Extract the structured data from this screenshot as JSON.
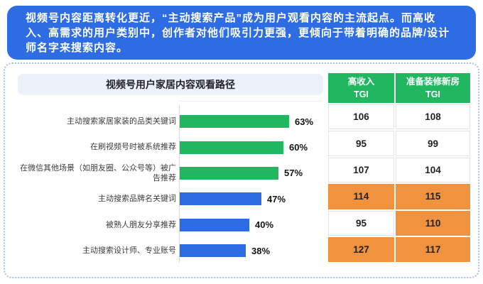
{
  "header": {
    "text": "视频号内容距离转化更近，“主动搜索产品”成为用户观看内容的主流起点。而高收入、高需求的用户类别中，创作者对他们吸引力更强，更倾向于带着明确的品牌/设计师名字来搜索内容。"
  },
  "chart_data": {
    "type": "bar",
    "orientation": "horizontal",
    "title": "视频号用户家居内容观看路径",
    "categories": [
      "主动搜索家居家装的品类关键词",
      "在刷视频号时被系统推荐",
      "在微信其他场景（如朋友圈、公众号等）被广告推荐",
      "主动搜索品牌名关键词",
      "被熟人朋友分享推荐",
      "主动搜索设计师、专业账号"
    ],
    "values": [
      63,
      60,
      57,
      47,
      40,
      38
    ],
    "value_labels": [
      "63%",
      "60%",
      "57%",
      "47%",
      "40%",
      "38%"
    ],
    "series_colors": [
      "#21b760",
      "#21b760",
      "#21b760",
      "#2d6ce2",
      "#2d6ce2",
      "#2d6ce2"
    ],
    "xlim": [
      0,
      70
    ],
    "grid": false,
    "legend": "none"
  },
  "table": {
    "columns": [
      {
        "line1": "高收入",
        "line2": "TGI"
      },
      {
        "line1": "准备装修新房",
        "line2": "TGI"
      }
    ],
    "rows": [
      {
        "cells": [
          {
            "value": "106",
            "highlight": false
          },
          {
            "value": "108",
            "highlight": false
          }
        ]
      },
      {
        "cells": [
          {
            "value": "95",
            "highlight": false
          },
          {
            "value": "99",
            "highlight": false
          }
        ]
      },
      {
        "cells": [
          {
            "value": "107",
            "highlight": false
          },
          {
            "value": "104",
            "highlight": false
          }
        ]
      },
      {
        "cells": [
          {
            "value": "114",
            "highlight": true
          },
          {
            "value": "115",
            "highlight": true
          }
        ]
      },
      {
        "cells": [
          {
            "value": "95",
            "highlight": false
          },
          {
            "value": "110",
            "highlight": true
          }
        ]
      },
      {
        "cells": [
          {
            "value": "127",
            "highlight": true
          },
          {
            "value": "117",
            "highlight": true
          }
        ]
      }
    ]
  },
  "colors": {
    "header_blue": "#2d6ce2",
    "bar_green": "#21b760",
    "bar_blue": "#2d6ce2",
    "highlight_orange": "#f0923e",
    "title_banner_bg": "#ecf1fa",
    "dotted_border": "#a3c2e6"
  }
}
